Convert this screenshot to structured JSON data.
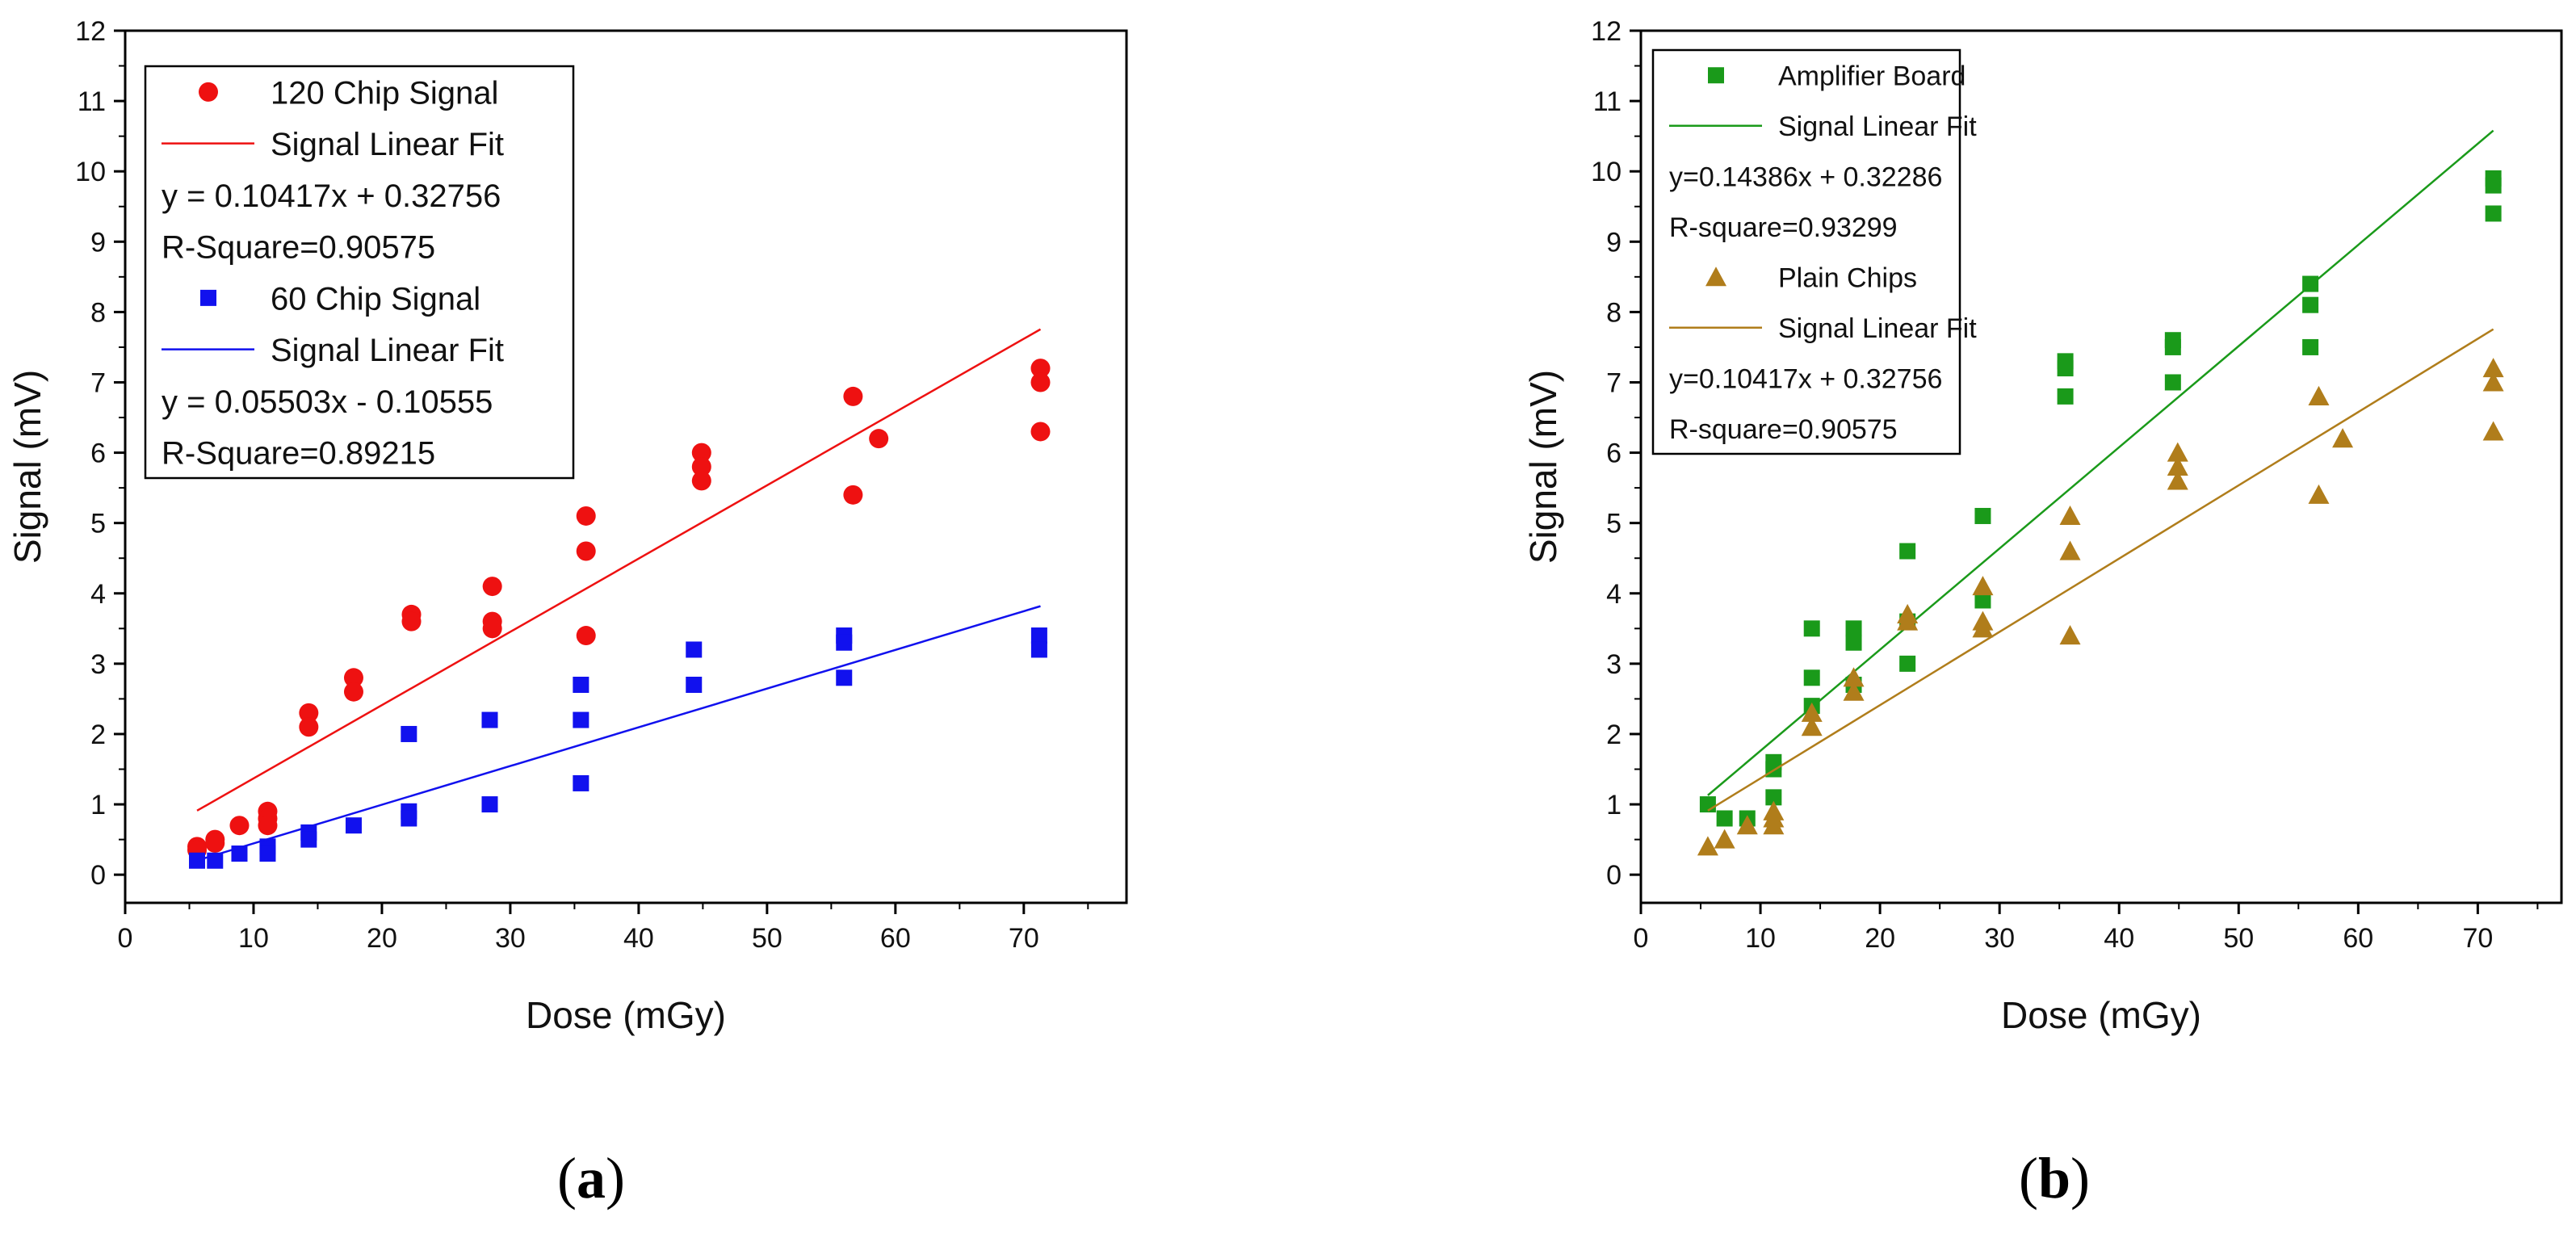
{
  "chart_data": [
    {
      "type": "scatter",
      "panel": "a",
      "xlabel": "Dose (mGy)",
      "ylabel": "Signal (mV)",
      "xlim": [
        0,
        78
      ],
      "ylim": [
        -0.4,
        12
      ],
      "xticks": [
        0,
        10,
        20,
        30,
        40,
        50,
        60,
        70
      ],
      "yticks": [
        0,
        1,
        2,
        3,
        4,
        5,
        6,
        7,
        8,
        9,
        10,
        11,
        12
      ],
      "legend_position": "top-left",
      "series": [
        {
          "name": "120 Chip Signal",
          "marker": "circle",
          "color": "#ee1111",
          "points": [
            [
              5.6,
              0.4
            ],
            [
              5.6,
              0.35
            ],
            [
              7,
              0.5
            ],
            [
              7,
              0.45
            ],
            [
              8.9,
              0.7
            ],
            [
              11.1,
              0.9
            ],
            [
              11.1,
              0.8
            ],
            [
              11.1,
              0.7
            ],
            [
              14.3,
              2.3
            ],
            [
              14.3,
              2.1
            ],
            [
              17.8,
              2.8
            ],
            [
              17.8,
              2.6
            ],
            [
              22.3,
              3.7
            ],
            [
              22.3,
              3.6
            ],
            [
              28.6,
              4.1
            ],
            [
              28.6,
              3.6
            ],
            [
              28.6,
              3.5
            ],
            [
              35.9,
              5.1
            ],
            [
              35.9,
              4.6
            ],
            [
              35.9,
              3.4
            ],
            [
              44.9,
              6.0
            ],
            [
              44.9,
              5.8
            ],
            [
              44.9,
              5.6
            ],
            [
              56.7,
              6.8
            ],
            [
              56.7,
              5.4
            ],
            [
              58.7,
              6.2
            ],
            [
              71.3,
              7.2
            ],
            [
              71.3,
              7.0
            ],
            [
              71.3,
              6.3
            ]
          ]
        },
        {
          "name": "Signal Linear Fit",
          "type": "fit-line",
          "color": "#ee1111",
          "x_range": [
            5.6,
            71.3
          ],
          "slope": 0.10417,
          "intercept": 0.32756
        },
        {
          "name": "60 Chip Signal",
          "marker": "square",
          "color": "#1111ee",
          "points": [
            [
              5.6,
              0.2
            ],
            [
              7,
              0.2
            ],
            [
              8.9,
              0.3
            ],
            [
              11.1,
              0.4
            ],
            [
              11.1,
              0.3
            ],
            [
              14.3,
              0.6
            ],
            [
              14.3,
              0.5
            ],
            [
              17.8,
              0.7
            ],
            [
              22.1,
              2.0
            ],
            [
              22.1,
              0.9
            ],
            [
              22.1,
              0.8
            ],
            [
              28.4,
              2.2
            ],
            [
              28.4,
              1.0
            ],
            [
              35.5,
              2.7
            ],
            [
              35.5,
              2.2
            ],
            [
              35.5,
              1.3
            ],
            [
              44.3,
              3.2
            ],
            [
              44.3,
              2.7
            ],
            [
              56,
              3.4
            ],
            [
              56,
              3.3
            ],
            [
              56,
              2.8
            ],
            [
              71.2,
              3.4
            ],
            [
              71.2,
              3.2
            ]
          ]
        },
        {
          "name": "Signal Linear Fit",
          "type": "fit-line",
          "color": "#1111ee",
          "x_range": [
            5.6,
            71.3
          ],
          "slope": 0.05503,
          "intercept": -0.10555
        }
      ],
      "legend": [
        {
          "label": "120 Chip Signal",
          "symbol": "circle",
          "color": "#ee1111"
        },
        {
          "label": "Signal Linear Fit",
          "symbol": "line",
          "color": "#ee1111"
        },
        {
          "label": "y = 0.10417x + 0.32756",
          "symbol": "none"
        },
        {
          "label": "R-Square=0.90575",
          "symbol": "none"
        },
        {
          "label": "60 Chip Signal",
          "symbol": "square",
          "color": "#1111ee"
        },
        {
          "label": "Signal Linear Fit",
          "symbol": "line",
          "color": "#1111ee"
        },
        {
          "label": "y = 0.05503x - 0.10555",
          "symbol": "none"
        },
        {
          "label": "R-Square=0.89215",
          "symbol": "none"
        }
      ]
    },
    {
      "type": "scatter",
      "panel": "b",
      "xlabel": "Dose (mGy)",
      "ylabel": "Signal (mV)",
      "xlim": [
        0,
        77
      ],
      "ylim": [
        -0.4,
        12
      ],
      "xticks": [
        0,
        10,
        20,
        30,
        40,
        50,
        60,
        70
      ],
      "yticks": [
        0,
        1,
        2,
        3,
        4,
        5,
        6,
        7,
        8,
        9,
        10,
        11,
        12
      ],
      "legend_position": "top-left",
      "series": [
        {
          "name": "Amplifier Board",
          "marker": "square",
          "color": "#1a9a1a",
          "points": [
            [
              5.6,
              1.0
            ],
            [
              7,
              0.8
            ],
            [
              8.9,
              0.8
            ],
            [
              11.1,
              1.6
            ],
            [
              11.1,
              1.5
            ],
            [
              11.1,
              1.1
            ],
            [
              14.3,
              3.5
            ],
            [
              14.3,
              2.8
            ],
            [
              14.3,
              2.4
            ],
            [
              17.8,
              3.5
            ],
            [
              17.8,
              3.3
            ],
            [
              17.8,
              2.7
            ],
            [
              22.3,
              4.6
            ],
            [
              22.3,
              3.6
            ],
            [
              22.3,
              3.0
            ],
            [
              28.6,
              5.1
            ],
            [
              28.6,
              3.9
            ],
            [
              35.5,
              7.3
            ],
            [
              35.5,
              7.2
            ],
            [
              35.5,
              6.8
            ],
            [
              44.5,
              7.6
            ],
            [
              44.5,
              7.5
            ],
            [
              44.5,
              7.0
            ],
            [
              56,
              8.4
            ],
            [
              56,
              8.1
            ],
            [
              56,
              7.5
            ],
            [
              71.3,
              9.9
            ],
            [
              71.3,
              9.8
            ],
            [
              71.3,
              9.4
            ]
          ]
        },
        {
          "name": "Signal Linear Fit",
          "type": "fit-line",
          "color": "#1a9a1a",
          "x_range": [
            5.6,
            71.3
          ],
          "slope": 0.14386,
          "intercept": 0.32286
        },
        {
          "name": "Plain Chips",
          "marker": "triangle",
          "color": "#b07d1b",
          "points": [
            [
              5.6,
              0.4
            ],
            [
              7,
              0.5
            ],
            [
              8.9,
              0.7
            ],
            [
              11.1,
              0.9
            ],
            [
              11.1,
              0.8
            ],
            [
              11.1,
              0.7
            ],
            [
              14.3,
              2.3
            ],
            [
              14.3,
              2.1
            ],
            [
              17.8,
              2.8
            ],
            [
              17.8,
              2.6
            ],
            [
              22.3,
              3.7
            ],
            [
              22.3,
              3.6
            ],
            [
              28.6,
              4.1
            ],
            [
              28.6,
              3.6
            ],
            [
              28.6,
              3.5
            ],
            [
              35.9,
              5.1
            ],
            [
              35.9,
              4.6
            ],
            [
              35.9,
              3.4
            ],
            [
              44.9,
              6.0
            ],
            [
              44.9,
              5.8
            ],
            [
              44.9,
              5.6
            ],
            [
              56.7,
              6.8
            ],
            [
              56.7,
              5.4
            ],
            [
              58.7,
              6.2
            ],
            [
              71.3,
              7.2
            ],
            [
              71.3,
              7.0
            ],
            [
              71.3,
              6.3
            ]
          ]
        },
        {
          "name": "Signal Linear Fit",
          "type": "fit-line",
          "color": "#b07d1b",
          "x_range": [
            5.6,
            71.3
          ],
          "slope": 0.10417,
          "intercept": 0.32756
        }
      ],
      "legend": [
        {
          "label": "Amplifier Board",
          "symbol": "square",
          "color": "#1a9a1a"
        },
        {
          "label": "Signal Linear Fit",
          "symbol": "line",
          "color": "#1a9a1a"
        },
        {
          "label": "y=0.14386x + 0.32286",
          "symbol": "none"
        },
        {
          "label": "R-square=0.93299",
          "symbol": "none"
        },
        {
          "label": "Plain Chips",
          "symbol": "triangle",
          "color": "#b07d1b"
        },
        {
          "label": "Signal Linear Fit",
          "symbol": "line",
          "color": "#b07d1b"
        },
        {
          "label": "y=0.10417x + 0.32756",
          "symbol": "none"
        },
        {
          "label": "R-square=0.90575",
          "symbol": "none"
        }
      ]
    }
  ],
  "captions": {
    "panel_a": "a",
    "panel_b": "b"
  }
}
